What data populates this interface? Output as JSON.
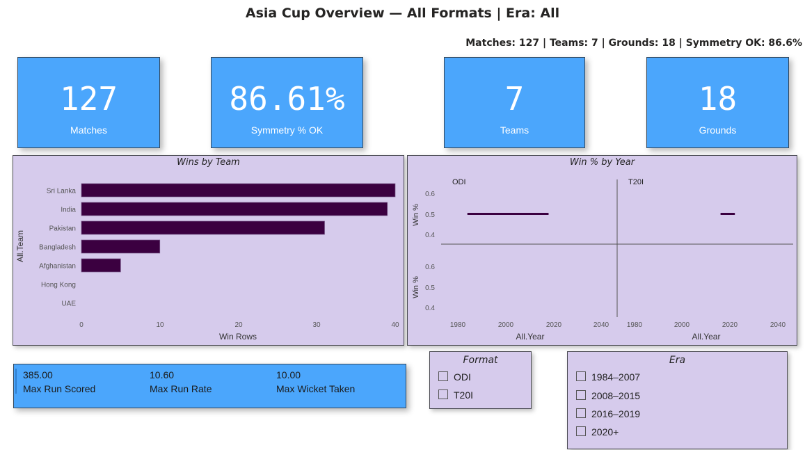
{
  "header": {
    "title": "Asia Cup Overview — All Formats | Era: All",
    "subtitle": "Matches: 127 | Teams: 7 | Grounds: 18 | Symmetry OK: 86.6%"
  },
  "kpis": [
    {
      "value": "127",
      "label": "Matches"
    },
    {
      "value": "86.61%",
      "label": "Symmetry % OK"
    },
    {
      "value": "7",
      "label": "Teams"
    },
    {
      "value": "18",
      "label": "Grounds"
    }
  ],
  "wins_chart": {
    "title": "Wins by Team",
    "xlabel": "Win Rows",
    "ylabel": "All.Team",
    "x_ticks": [
      "0",
      "10",
      "20",
      "30",
      "40"
    ],
    "bar_color": "#3b0040"
  },
  "winpct_chart": {
    "title": "Win % by Year",
    "panels": [
      "ODI",
      "T20I"
    ],
    "ylabel": "Win %",
    "xlabel": "All.Year",
    "y_ticks": [
      "0.6",
      "0.5",
      "0.4"
    ],
    "x_ticks": [
      "1980",
      "2000",
      "2020",
      "2040"
    ]
  },
  "chart_data": [
    {
      "type": "bar",
      "orientation": "horizontal",
      "title": "Wins by Team",
      "xlabel": "Win Rows",
      "ylabel": "All.Team",
      "categories": [
        "Sri Lanka",
        "India",
        "Pakistan",
        "Bangladesh",
        "Afghanistan",
        "Hong Kong",
        "UAE"
      ],
      "values": [
        40,
        39,
        31,
        10,
        5,
        0,
        0
      ],
      "xlim": [
        0,
        40
      ],
      "grid": false
    },
    {
      "type": "line",
      "title": "Win % by Year",
      "xlabel": "All.Year",
      "ylabel": "Win %",
      "xlim": [
        1975,
        2045
      ],
      "ylim": [
        0.35,
        0.65
      ],
      "facets": [
        {
          "name": "ODI",
          "x": [
            1984,
            2018
          ],
          "y": [
            0.5,
            0.5
          ]
        },
        {
          "name": "T20I",
          "x": [
            2016,
            2022
          ],
          "y": [
            0.5,
            0.5
          ]
        }
      ]
    }
  ],
  "stats_card": {
    "items": [
      {
        "value": "385.00",
        "label": "Max Run Scored"
      },
      {
        "value": "10.60",
        "label": "Max Run Rate"
      },
      {
        "value": "10.00",
        "label": "Max Wicket Taken"
      }
    ]
  },
  "format_slicer": {
    "title": "Format",
    "options": [
      "ODI",
      "T20I"
    ]
  },
  "era_slicer": {
    "title": "Era",
    "options": [
      "1984–2007",
      "2008–2015",
      "2016–2019",
      "2020+"
    ]
  },
  "colors": {
    "kpi_bg": "#4ba6fc",
    "panel_bg": "#d6cbec",
    "bar": "#3b0040"
  }
}
